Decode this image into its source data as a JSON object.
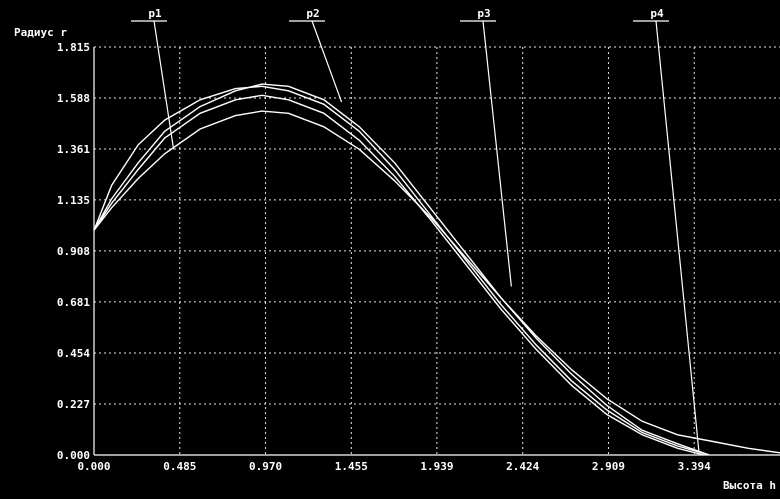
{
  "chart_data": {
    "type": "line",
    "ylabel": "Радиус r",
    "xlabel": "Высота h",
    "xlim": [
      0,
      3.879
    ],
    "ylim": [
      0,
      1.815
    ],
    "x_ticks": [
      "0.000",
      "0.485",
      "0.970",
      "1.455",
      "1.939",
      "2.424",
      "2.909",
      "3.394"
    ],
    "y_ticks": [
      "1.815",
      "1.588",
      "1.361",
      "1.135",
      "0.908",
      "0.681",
      "0.454",
      "0.227",
      "0.000"
    ],
    "grid": true,
    "series": [
      {
        "name": "p1",
        "points": [
          [
            0.0,
            1.0
          ],
          [
            0.1,
            1.2
          ],
          [
            0.25,
            1.38
          ],
          [
            0.4,
            1.49
          ],
          [
            0.6,
            1.58
          ],
          [
            0.8,
            1.63
          ],
          [
            0.95,
            1.64
          ],
          [
            1.1,
            1.62
          ],
          [
            1.3,
            1.56
          ],
          [
            1.5,
            1.44
          ],
          [
            1.7,
            1.27
          ],
          [
            1.9,
            1.07
          ],
          [
            2.1,
            0.87
          ],
          [
            2.3,
            0.67
          ],
          [
            2.5,
            0.49
          ],
          [
            2.7,
            0.33
          ],
          [
            2.9,
            0.2
          ],
          [
            3.1,
            0.1
          ],
          [
            3.3,
            0.04
          ],
          [
            3.48,
            0.0
          ]
        ]
      },
      {
        "name": "p2",
        "points": [
          [
            0.0,
            1.0
          ],
          [
            0.1,
            1.14
          ],
          [
            0.25,
            1.3
          ],
          [
            0.4,
            1.44
          ],
          [
            0.6,
            1.55
          ],
          [
            0.8,
            1.62
          ],
          [
            0.95,
            1.65
          ],
          [
            1.1,
            1.64
          ],
          [
            1.3,
            1.58
          ],
          [
            1.5,
            1.46
          ],
          [
            1.7,
            1.3
          ],
          [
            1.9,
            1.1
          ],
          [
            2.1,
            0.9
          ],
          [
            2.3,
            0.7
          ],
          [
            2.5,
            0.52
          ],
          [
            2.7,
            0.36
          ],
          [
            2.9,
            0.22
          ],
          [
            3.1,
            0.11
          ],
          [
            3.3,
            0.05
          ],
          [
            3.48,
            0.0
          ]
        ]
      },
      {
        "name": "p3",
        "points": [
          [
            0.0,
            1.0
          ],
          [
            0.1,
            1.12
          ],
          [
            0.25,
            1.27
          ],
          [
            0.4,
            1.41
          ],
          [
            0.6,
            1.52
          ],
          [
            0.8,
            1.58
          ],
          [
            0.95,
            1.6
          ],
          [
            1.1,
            1.58
          ],
          [
            1.3,
            1.52
          ],
          [
            1.5,
            1.4
          ],
          [
            1.7,
            1.24
          ],
          [
            1.9,
            1.05
          ],
          [
            2.1,
            0.85
          ],
          [
            2.3,
            0.65
          ],
          [
            2.5,
            0.47
          ],
          [
            2.7,
            0.31
          ],
          [
            2.9,
            0.18
          ],
          [
            3.1,
            0.09
          ],
          [
            3.3,
            0.03
          ],
          [
            3.45,
            0.0
          ]
        ]
      },
      {
        "name": "p4",
        "points": [
          [
            0.0,
            1.0
          ],
          [
            0.1,
            1.1
          ],
          [
            0.25,
            1.23
          ],
          [
            0.4,
            1.34
          ],
          [
            0.6,
            1.45
          ],
          [
            0.8,
            1.51
          ],
          [
            0.95,
            1.53
          ],
          [
            1.1,
            1.52
          ],
          [
            1.3,
            1.46
          ],
          [
            1.5,
            1.36
          ],
          [
            1.7,
            1.22
          ],
          [
            1.9,
            1.06
          ],
          [
            2.1,
            0.88
          ],
          [
            2.3,
            0.7
          ],
          [
            2.5,
            0.53
          ],
          [
            2.7,
            0.38
          ],
          [
            2.9,
            0.25
          ],
          [
            3.1,
            0.15
          ],
          [
            3.3,
            0.09
          ],
          [
            3.5,
            0.06
          ],
          [
            3.7,
            0.03
          ],
          [
            3.879,
            0.01
          ]
        ]
      }
    ],
    "annotations": [
      {
        "text": "p1",
        "target_x": 0.45,
        "target_y": 1.36
      },
      {
        "text": "p2",
        "target_x": 1.4,
        "target_y": 1.57
      },
      {
        "text": "p3",
        "target_x": 2.36,
        "target_y": 0.75
      },
      {
        "text": "p4",
        "target_x": 3.42,
        "target_y": 0.02
      }
    ]
  }
}
